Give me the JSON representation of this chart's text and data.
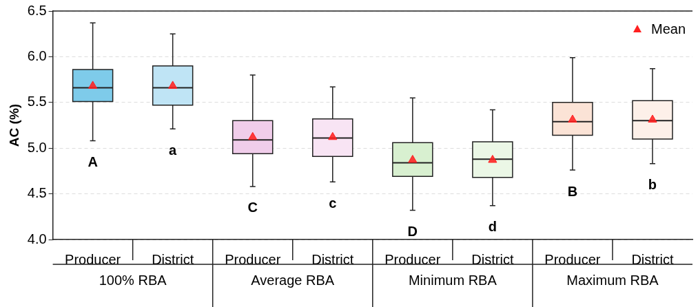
{
  "chart_data": {
    "type": "box",
    "ylabel": "AC (%)",
    "categories": [
      "Producer",
      "District",
      "Producer",
      "District",
      "Producer",
      "District",
      "Producer",
      "District"
    ],
    "ylim": [
      4,
      6.5
    ],
    "yticks": [
      {
        "value": 4,
        "label": "4.0"
      },
      {
        "value": 4.5,
        "label": "4.5"
      },
      {
        "value": 5,
        "label": "5.0"
      },
      {
        "value": 5.5,
        "label": "5.5"
      },
      {
        "value": 6,
        "label": "6.0"
      },
      {
        "value": 6.5,
        "label": "6.5"
      }
    ],
    "grid": "y",
    "legend": "top right",
    "series": [
      {
        "colors": [
          "#7ecbea",
          "#bfe4f5",
          "#f0cdea",
          "#f8e4f4",
          "#d8f0d0",
          "#ebf7e6",
          "#fbe3d6",
          "#fdf0e9"
        ],
        "boxes": [
          {
            "low": 5.08,
            "q1": 5.51,
            "median": 5.66,
            "q3": 5.86,
            "high": 6.37
          },
          {
            "low": 5.21,
            "q1": 5.47,
            "median": 5.66,
            "q3": 5.9,
            "high": 6.25
          },
          {
            "low": 4.58,
            "q1": 4.94,
            "median": 5.09,
            "q3": 5.3,
            "high": 5.8
          },
          {
            "low": 4.63,
            "q1": 4.91,
            "median": 5.11,
            "q3": 5.32,
            "high": 5.67
          },
          {
            "low": 4.32,
            "q1": 4.69,
            "median": 4.84,
            "q3": 5.06,
            "high": 5.55
          },
          {
            "low": 4.37,
            "q1": 4.68,
            "median": 4.88,
            "q3": 5.07,
            "high": 5.42
          },
          {
            "low": 4.76,
            "q1": 5.14,
            "median": 5.29,
            "q3": 5.5,
            "high": 5.99
          },
          {
            "low": 4.83,
            "q1": 5.1,
            "median": 5.3,
            "q3": 5.52,
            "high": 5.87
          }
        ]
      },
      {
        "type": "scatter",
        "name": "Mean",
        "color": "#ff2020",
        "marker": "triangle",
        "values": [
          5.68,
          5.68,
          5.12,
          5.12,
          4.87,
          4.87,
          5.31,
          5.31
        ]
      }
    ],
    "annotations": [
      "100% RBA",
      "Average RBA",
      "Minimum RBA",
      "Maximum RBA",
      "A",
      "a",
      "C",
      "c",
      "D",
      "d",
      "B",
      "b"
    ]
  }
}
